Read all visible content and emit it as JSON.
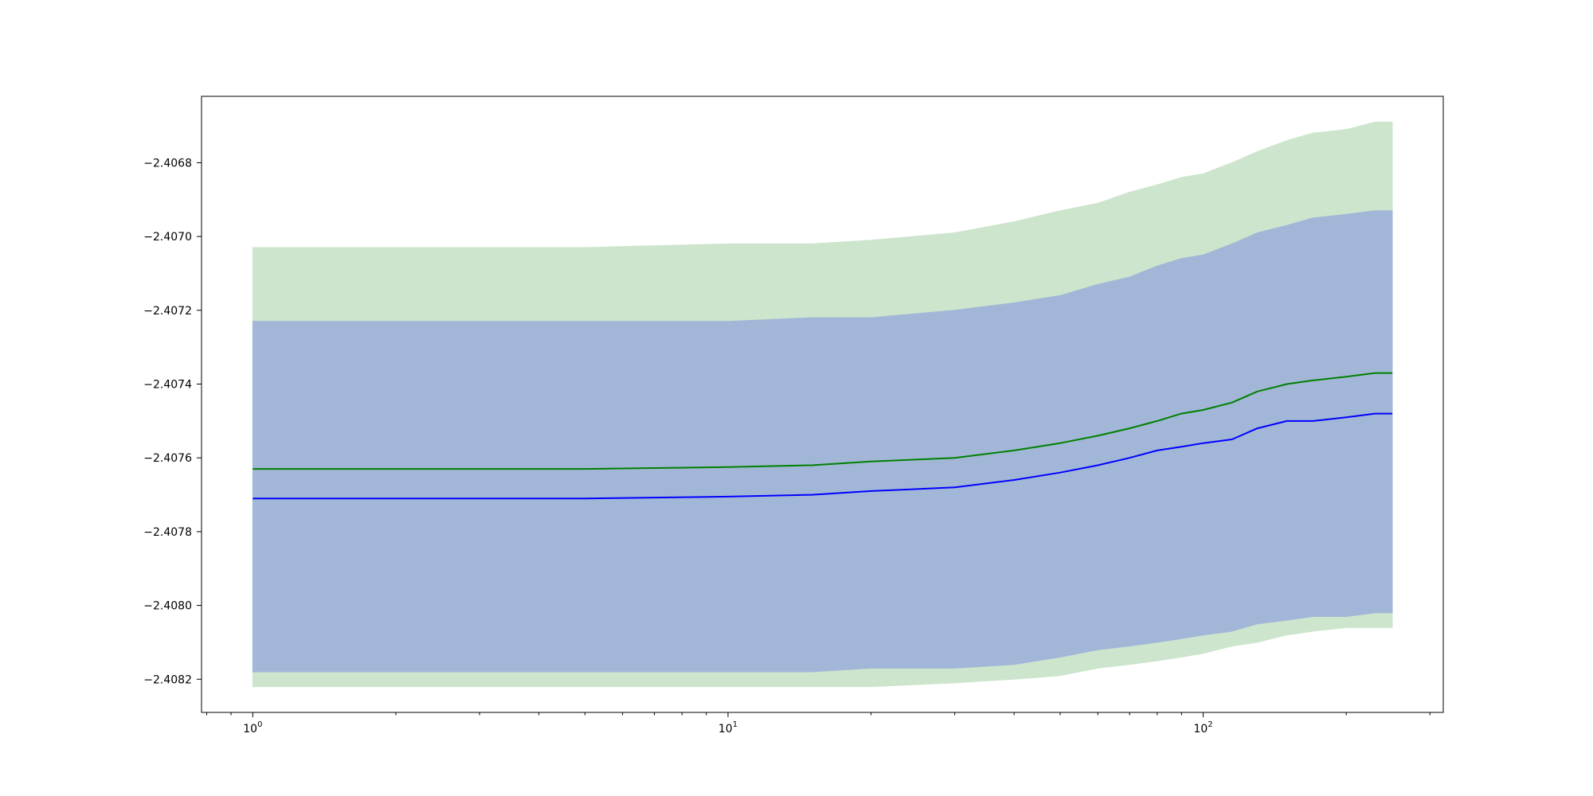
{
  "chart_data": {
    "type": "area",
    "title": "",
    "xlabel": "",
    "ylabel": "",
    "xscale": "log",
    "xlim": [
      0.78,
      320
    ],
    "ylim": [
      -2.40829,
      -2.40662
    ],
    "grid": false,
    "legend": "none",
    "x_ticks": [
      {
        "value": 1,
        "base": "10",
        "exp": "0"
      },
      {
        "value": 10,
        "base": "10",
        "exp": "1"
      },
      {
        "value": 100,
        "base": "10",
        "exp": "2"
      }
    ],
    "y_ticks": [
      {
        "value": -2.4068,
        "label": "−2.4068"
      },
      {
        "value": -2.407,
        "label": "−2.4070"
      },
      {
        "value": -2.4072,
        "label": "−2.4072"
      },
      {
        "value": -2.4074,
        "label": "−2.4074"
      },
      {
        "value": -2.4076,
        "label": "−2.4076"
      },
      {
        "value": -2.4078,
        "label": "−2.4078"
      },
      {
        "value": -2.408,
        "label": "−2.4080"
      },
      {
        "value": -2.4082,
        "label": "−2.4082"
      }
    ],
    "series": [
      {
        "color": "#008000",
        "band_color": "#cde5cd",
        "x": [
          1,
          5,
          10,
          15,
          20,
          30,
          40,
          50,
          60,
          70,
          80,
          90,
          100,
          115,
          130,
          150,
          170,
          200,
          230,
          250
        ],
        "mean": [
          -2.40763,
          -2.40763,
          -2.407625,
          -2.40762,
          -2.40761,
          -2.4076,
          -2.40758,
          -2.40756,
          -2.40754,
          -2.40752,
          -2.4075,
          -2.40748,
          -2.40747,
          -2.40745,
          -2.40742,
          -2.4074,
          -2.40739,
          -2.40738,
          -2.40737,
          -2.40737
        ],
        "upper": [
          -2.40703,
          -2.40703,
          -2.40702,
          -2.40702,
          -2.40701,
          -2.40699,
          -2.40696,
          -2.40693,
          -2.40691,
          -2.40688,
          -2.40686,
          -2.40684,
          -2.40683,
          -2.4068,
          -2.40677,
          -2.40674,
          -2.40672,
          -2.40671,
          -2.40669,
          -2.40669
        ],
        "lower": [
          -2.40822,
          -2.40822,
          -2.40822,
          -2.40822,
          -2.40822,
          -2.40821,
          -2.4082,
          -2.40819,
          -2.40817,
          -2.40816,
          -2.40815,
          -2.40814,
          -2.40813,
          -2.40811,
          -2.4081,
          -2.40808,
          -2.40807,
          -2.40806,
          -2.40806,
          -2.40806
        ]
      },
      {
        "color": "#0000ff",
        "band_color": "#a2b7d7",
        "x": [
          1,
          5,
          10,
          15,
          20,
          30,
          40,
          50,
          60,
          70,
          80,
          90,
          100,
          115,
          130,
          150,
          170,
          200,
          230,
          250
        ],
        "mean": [
          -2.40771,
          -2.40771,
          -2.407705,
          -2.4077,
          -2.40769,
          -2.40768,
          -2.40766,
          -2.40764,
          -2.40762,
          -2.4076,
          -2.40758,
          -2.40757,
          -2.40756,
          -2.40755,
          -2.40752,
          -2.4075,
          -2.4075,
          -2.40749,
          -2.40748,
          -2.40748
        ],
        "upper": [
          -2.40723,
          -2.40723,
          -2.40723,
          -2.40722,
          -2.40722,
          -2.4072,
          -2.40718,
          -2.40716,
          -2.40713,
          -2.40711,
          -2.40708,
          -2.40706,
          -2.40705,
          -2.40702,
          -2.40699,
          -2.40697,
          -2.40695,
          -2.40694,
          -2.40693,
          -2.40693
        ],
        "lower": [
          -2.40818,
          -2.40818,
          -2.40818,
          -2.40818,
          -2.40817,
          -2.40817,
          -2.40816,
          -2.40814,
          -2.40812,
          -2.40811,
          -2.4081,
          -2.40809,
          -2.40808,
          -2.40807,
          -2.40805,
          -2.40804,
          -2.40803,
          -2.40803,
          -2.40802,
          -2.40802
        ]
      }
    ]
  }
}
